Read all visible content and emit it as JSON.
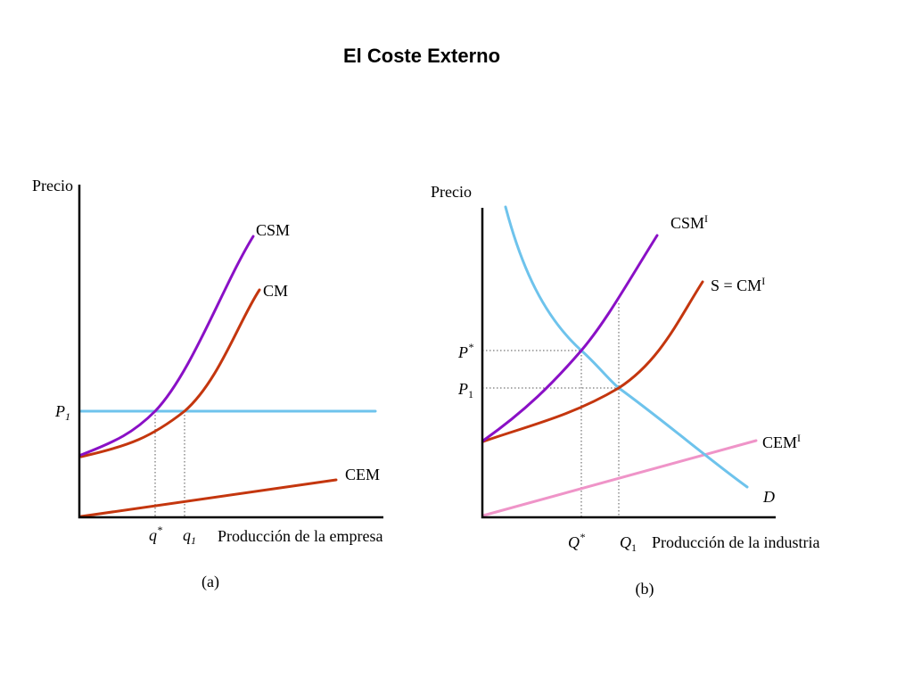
{
  "title": "El Coste Externo",
  "colors": {
    "csm": "#8a10c6",
    "cm": "#c4360e",
    "price_line": "#6ec3ec",
    "demand": "#6ec3ec",
    "cem_a": "#c4360e",
    "cem_b": "#ef94c8",
    "axis": "#000000"
  },
  "panel_a": {
    "y_axis_label": "Precio",
    "x_axis_label": "Producción de la empresa",
    "caption": "(a)",
    "curves": {
      "csm": "CSM",
      "cm": "CM",
      "cem": "CEM"
    },
    "price_label": "P",
    "price_sub": "1",
    "q_star": {
      "base": "q",
      "sup": "*"
    },
    "q1": {
      "base": "q",
      "sub": "1"
    }
  },
  "panel_b": {
    "y_axis_label": "Precio",
    "x_axis_label": "Producción de la industria",
    "caption": "(b)",
    "curves": {
      "csmi": {
        "base": "CSM",
        "sup": "I"
      },
      "s": {
        "base": "S = CM",
        "sup": "I"
      },
      "cemi": {
        "base": "CEM",
        "sup": "I"
      },
      "d": "D"
    },
    "p_star": {
      "base": "P",
      "sup": "*"
    },
    "p1": {
      "base": "P",
      "sub": "1"
    },
    "q_star": {
      "base": "Q",
      "sup": "*"
    },
    "q1": {
      "base": "Q",
      "sub": "1"
    }
  }
}
